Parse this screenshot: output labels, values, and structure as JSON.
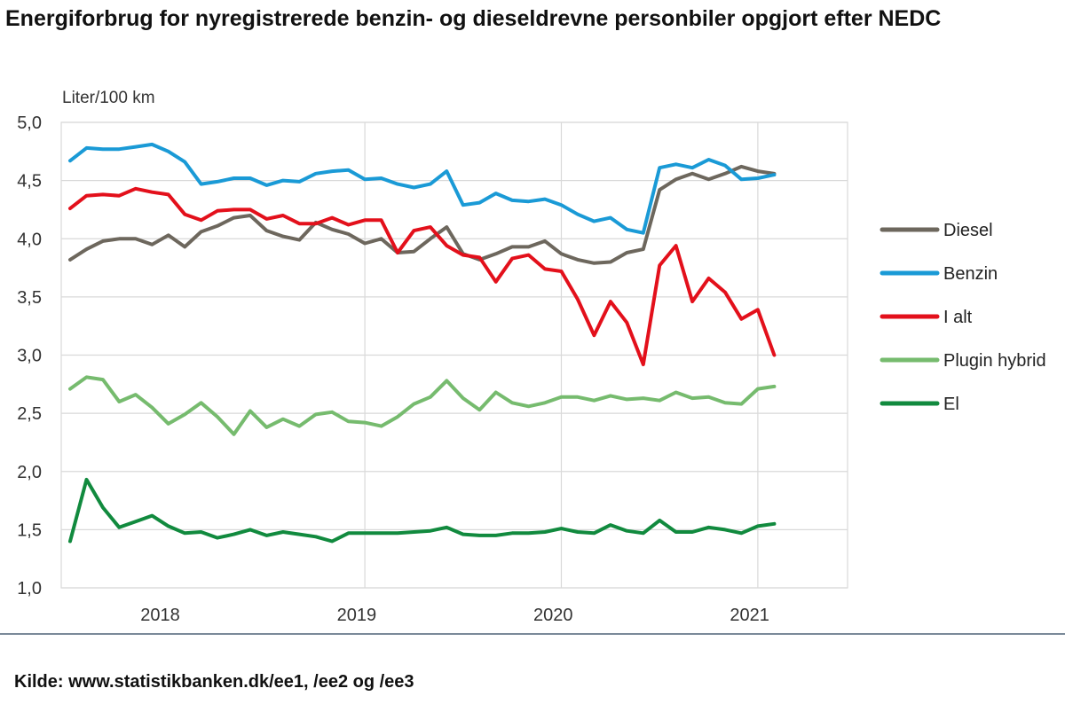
{
  "header": {
    "title": "Energiforbrug for nyregistrerede benzin- og dieseldrevne personbiler opgjort efter NEDC"
  },
  "footer": {
    "source": "Kilde: www.statistikbanken.dk/ee1, /ee2 og /ee3"
  },
  "chart_data": {
    "type": "line",
    "title": "Energiforbrug for nyregistrerede benzin- og dieseldrevne personbiler opgjort efter NEDC",
    "ylabel": "Liter/100 km",
    "xlabel": "",
    "ylim": [
      1.0,
      5.0
    ],
    "yticks": [
      "1,0",
      "1,5",
      "2,0",
      "2,5",
      "3,0",
      "3,5",
      "4,0",
      "4,5",
      "5,0"
    ],
    "xticks": [
      {
        "label": "2018",
        "month_index": 5.5
      },
      {
        "label": "2019",
        "month_index": 17.5
      },
      {
        "label": "2020",
        "month_index": 29.5
      },
      {
        "label": "2021",
        "month_index": 41.5
      }
    ],
    "x_start": "2017-07",
    "x_end": "2021-02",
    "grid": true,
    "legend": "right",
    "series": [
      {
        "name": "Diesel",
        "color": "#6d675d",
        "values": [
          3.82,
          3.91,
          3.98,
          4.0,
          4.0,
          3.95,
          4.03,
          3.93,
          4.06,
          4.11,
          4.18,
          4.2,
          4.07,
          4.02,
          3.99,
          4.14,
          4.08,
          4.04,
          3.96,
          4.0,
          3.88,
          3.89,
          4.0,
          4.1,
          3.87,
          3.82,
          3.87,
          3.93,
          3.93,
          3.98,
          3.87,
          3.82,
          3.79,
          3.8,
          3.88,
          3.91,
          4.42,
          4.51,
          4.56,
          4.51,
          4.56,
          4.62,
          4.58,
          4.56
        ]
      },
      {
        "name": "Benzin",
        "color": "#1a9ad6",
        "values": [
          4.67,
          4.78,
          4.77,
          4.77,
          4.79,
          4.81,
          4.75,
          4.66,
          4.47,
          4.49,
          4.52,
          4.52,
          4.46,
          4.5,
          4.49,
          4.56,
          4.58,
          4.59,
          4.51,
          4.52,
          4.47,
          4.44,
          4.47,
          4.58,
          4.29,
          4.31,
          4.39,
          4.33,
          4.32,
          4.34,
          4.29,
          4.21,
          4.15,
          4.18,
          4.08,
          4.05,
          4.61,
          4.64,
          4.61,
          4.68,
          4.63,
          4.51,
          4.52,
          4.55
        ]
      },
      {
        "name": "I alt",
        "color": "#e3101b",
        "values": [
          4.26,
          4.37,
          4.38,
          4.37,
          4.43,
          4.4,
          4.38,
          4.21,
          4.16,
          4.24,
          4.25,
          4.25,
          4.17,
          4.2,
          4.13,
          4.13,
          4.18,
          4.12,
          4.16,
          4.16,
          3.88,
          4.07,
          4.1,
          3.94,
          3.86,
          3.84,
          3.63,
          3.83,
          3.86,
          3.74,
          3.72,
          3.48,
          3.17,
          3.46,
          3.28,
          2.92,
          3.77,
          3.94,
          3.46,
          3.66,
          3.54,
          3.31,
          3.39,
          3.0
        ]
      },
      {
        "name": "Plugin hybrid",
        "color": "#76bb6e",
        "values": [
          2.71,
          2.81,
          2.79,
          2.6,
          2.66,
          2.55,
          2.41,
          2.49,
          2.59,
          2.47,
          2.32,
          2.52,
          2.38,
          2.45,
          2.39,
          2.49,
          2.51,
          2.43,
          2.42,
          2.39,
          2.47,
          2.58,
          2.64,
          2.78,
          2.63,
          2.53,
          2.68,
          2.59,
          2.56,
          2.59,
          2.64,
          2.64,
          2.61,
          2.65,
          2.62,
          2.63,
          2.61,
          2.68,
          2.63,
          2.64,
          2.59,
          2.58,
          2.71,
          2.73
        ]
      },
      {
        "name": "El",
        "color": "#118a3e",
        "values": [
          1.4,
          1.93,
          1.69,
          1.52,
          1.57,
          1.62,
          1.53,
          1.47,
          1.48,
          1.43,
          1.46,
          1.5,
          1.45,
          1.48,
          1.46,
          1.44,
          1.4,
          1.47,
          1.47,
          1.47,
          1.47,
          1.48,
          1.49,
          1.52,
          1.46,
          1.45,
          1.45,
          1.47,
          1.47,
          1.48,
          1.51,
          1.48,
          1.47,
          1.54,
          1.49,
          1.47,
          1.58,
          1.48,
          1.48,
          1.52,
          1.5,
          1.47,
          1.53,
          1.55
        ]
      }
    ]
  }
}
